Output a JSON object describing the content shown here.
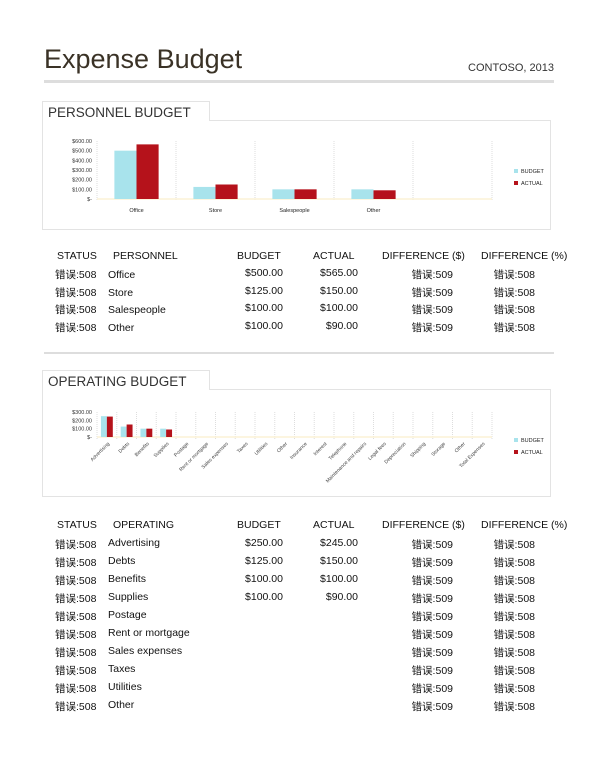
{
  "header": {
    "title": "Expense Budget",
    "company": "CONTOSO, 2013"
  },
  "colors": {
    "budget": "#a8e3ec",
    "actual": "#b5121b"
  },
  "personnel": {
    "section_title": "PERSONNEL BUDGET",
    "columns": [
      "STATUS",
      "PERSONNEL",
      "BUDGET",
      "ACTUAL",
      "DIFFERENCE ($)",
      "DIFFERENCE (%)"
    ],
    "rows": [
      {
        "status": "错误:508",
        "name": "Office",
        "budget": "$500.00",
        "actual": "$565.00",
        "diff": "错误:509",
        "pct": "错误:508"
      },
      {
        "status": "错误:508",
        "name": "Store",
        "budget": "$125.00",
        "actual": "$150.00",
        "diff": "错误:509",
        "pct": "错误:508"
      },
      {
        "status": "错误:508",
        "name": "Salespeople",
        "budget": "$100.00",
        "actual": "$100.00",
        "diff": "错误:509",
        "pct": "错误:508"
      },
      {
        "status": "错误:508",
        "name": "Other",
        "budget": "$100.00",
        "actual": "$90.00",
        "diff": "错误:509",
        "pct": "错误:508"
      }
    ]
  },
  "operating": {
    "section_title": "OPERATING BUDGET",
    "columns": [
      "STATUS",
      "OPERATING",
      "BUDGET",
      "ACTUAL",
      "DIFFERENCE ($)",
      "DIFFERENCE (%)"
    ],
    "rows": [
      {
        "status": "错误:508",
        "name": "Advertising",
        "budget": "$250.00",
        "actual": "$245.00",
        "diff": "错误:509",
        "pct": "错误:508"
      },
      {
        "status": "错误:508",
        "name": "Debts",
        "budget": "$125.00",
        "actual": "$150.00",
        "diff": "错误:509",
        "pct": "错误:508"
      },
      {
        "status": "错误:508",
        "name": "Benefits",
        "budget": "$100.00",
        "actual": "$100.00",
        "diff": "错误:509",
        "pct": "错误:508"
      },
      {
        "status": "错误:508",
        "name": "Supplies",
        "budget": "$100.00",
        "actual": "$90.00",
        "diff": "错误:509",
        "pct": "错误:508"
      },
      {
        "status": "错误:508",
        "name": "Postage",
        "budget": "",
        "actual": "",
        "diff": "错误:509",
        "pct": "错误:508"
      },
      {
        "status": "错误:508",
        "name": "Rent or mortgage",
        "budget": "",
        "actual": "",
        "diff": "错误:509",
        "pct": "错误:508"
      },
      {
        "status": "错误:508",
        "name": "Sales expenses",
        "budget": "",
        "actual": "",
        "diff": "错误:509",
        "pct": "错误:508"
      },
      {
        "status": "错误:508",
        "name": "Taxes",
        "budget": "",
        "actual": "",
        "diff": "错误:509",
        "pct": "错误:508"
      },
      {
        "status": "错误:508",
        "name": "Utilities",
        "budget": "",
        "actual": "",
        "diff": "错误:509",
        "pct": "错误:508"
      },
      {
        "status": "错误:508",
        "name": "Other",
        "budget": "",
        "actual": "",
        "diff": "错误:509",
        "pct": "错误:508"
      }
    ]
  },
  "chart_data": [
    {
      "type": "bar",
      "title": "",
      "categories": [
        "Office",
        "Store",
        "Salespeople",
        "Other",
        ""
      ],
      "series": [
        {
          "name": "BUDGET",
          "values": [
            500,
            125,
            100,
            100,
            null
          ]
        },
        {
          "name": "ACTUAL",
          "values": [
            565,
            150,
            100,
            90,
            null
          ]
        }
      ],
      "ylim": [
        0,
        600
      ],
      "yticks": [
        "$-",
        "$100.00",
        "$200.00",
        "$300.00",
        "$400.00",
        "$500.00",
        "$600.00"
      ],
      "ytick_values": [
        0,
        100,
        200,
        300,
        400,
        500,
        600
      ],
      "grid": "vertical dotted",
      "legend": "right"
    },
    {
      "type": "bar",
      "title": "",
      "categories": [
        "Advertising",
        "Debts",
        "Benefits",
        "Supplies",
        "Postage",
        "Rent or mortgage",
        "Sales expenses",
        "Taxes",
        "Utilities",
        "Other",
        "Insurance",
        "Interest",
        "Telephone",
        "Maintenance and repairs",
        "Legal fees",
        "Depreciation",
        "Shipping",
        "Storage",
        "Other",
        "Total Expenses"
      ],
      "series": [
        {
          "name": "BUDGET",
          "values": [
            250,
            125,
            100,
            100,
            null,
            null,
            null,
            null,
            null,
            null,
            null,
            null,
            null,
            null,
            null,
            null,
            null,
            null,
            null,
            null
          ]
        },
        {
          "name": "ACTUAL",
          "values": [
            245,
            150,
            100,
            90,
            null,
            null,
            null,
            null,
            null,
            null,
            null,
            null,
            null,
            null,
            null,
            null,
            null,
            null,
            null,
            null
          ]
        }
      ],
      "ylim": [
        0,
        300
      ],
      "yticks": [
        "$-",
        "$100.00",
        "$200.00",
        "$300.00"
      ],
      "ytick_values": [
        0,
        100,
        200,
        300
      ],
      "grid": "vertical dotted",
      "legend": "right"
    }
  ]
}
